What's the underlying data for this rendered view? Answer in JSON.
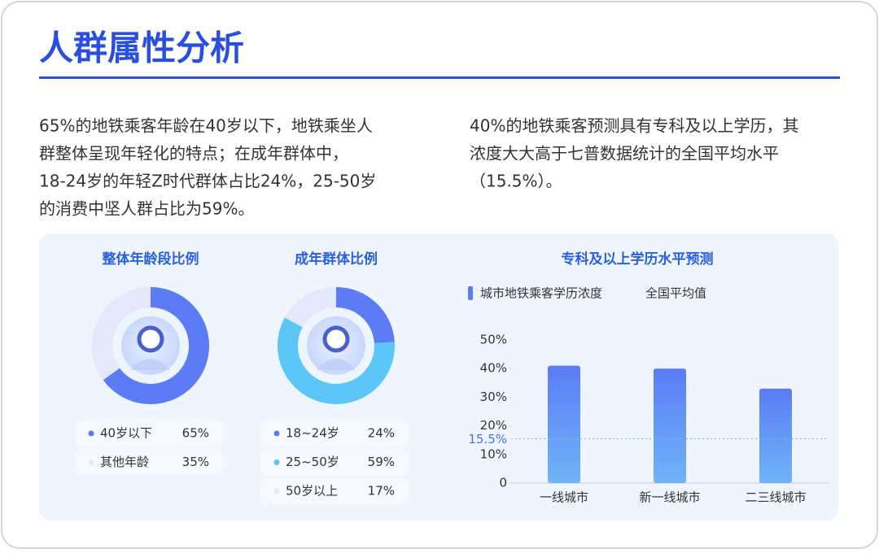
{
  "header": {
    "title": "人群属性分析"
  },
  "paragraphs": [
    [
      "65%的地铁乘客年龄在40岁以下，地铁乘坐人",
      "群整体呈现年轻化的特点；在成年群体中，",
      "18-24岁的年轻Z时代群体占比24%，25-50岁",
      "的消费中坚人群占比为59%。"
    ],
    [
      "40%的地铁乘客预测具有专科及以上学历，其",
      "浓度大大高于七普数据统计的全国平均水平",
      "（15.5%）。"
    ]
  ],
  "chart_data": [
    {
      "type": "pie",
      "title": "整体年龄段比例",
      "categories": [
        "40岁以下",
        "其他年龄"
      ],
      "values": [
        65,
        35
      ],
      "value_labels": [
        "65%",
        "35%"
      ],
      "colors": [
        "#5b7cf5",
        "#e4e8fb"
      ]
    },
    {
      "type": "pie",
      "title": "成年群体比例",
      "categories": [
        "18~24岁",
        "25~50岁",
        "50岁以上"
      ],
      "values": [
        24,
        59,
        17
      ],
      "value_labels": [
        "24%",
        "59%",
        "17%"
      ],
      "colors": [
        "#5b7cf5",
        "#5cc6f6",
        "#e4e8fb"
      ]
    },
    {
      "type": "bar",
      "title": "专科及以上学历水平预测",
      "categories": [
        "一线城市",
        "新一线城市",
        "二三线城市"
      ],
      "series": [
        {
          "name": "城市地铁乘客学历浓度",
          "color": "#5b7cf5",
          "values": [
            41,
            40,
            33
          ]
        }
      ],
      "reference_line": {
        "name": "全国平均值",
        "value": 15.5,
        "label": "15.5%",
        "color": "#7fb8d6"
      },
      "ylim": [
        0,
        50
      ],
      "yticks": [
        0,
        {
          "value": 10,
          "label": "10%"
        },
        {
          "value": 20,
          "label": "20%"
        },
        {
          "value": 30,
          "label": "30%"
        },
        {
          "value": 40,
          "label": "40%"
        },
        {
          "value": 50,
          "label": "50%"
        }
      ]
    }
  ]
}
